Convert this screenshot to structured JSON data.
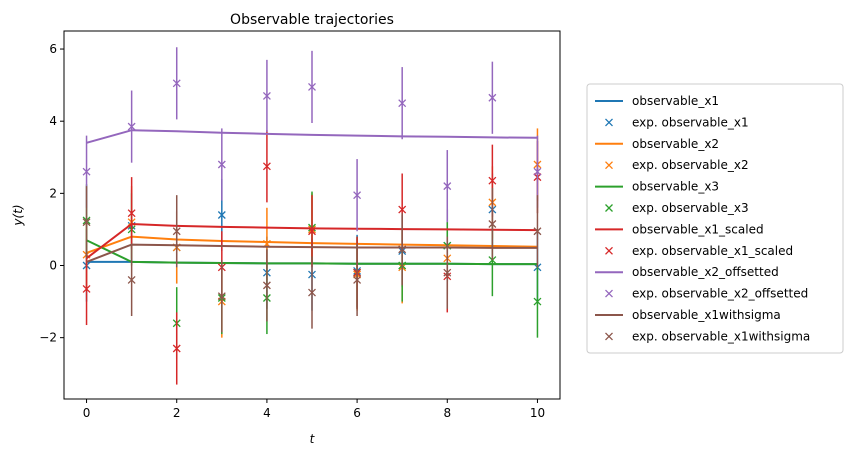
{
  "chart_data": {
    "type": "line",
    "title": "Observable trajectories",
    "xlabel": "t",
    "ylabel": "y(t)",
    "xlim": [
      -0.5,
      10.5
    ],
    "ylim": [
      -3.7,
      6.5
    ],
    "xticks": [
      0,
      2,
      4,
      6,
      8,
      10
    ],
    "xtick_labels": [
      "0",
      "2",
      "4",
      "6",
      "8",
      "10"
    ],
    "yticks": [
      -2,
      0,
      2,
      4,
      6
    ],
    "ytick_labels": [
      "−2",
      "0",
      "2",
      "4",
      "6"
    ],
    "grid": false,
    "legend_position": "right, outside plot",
    "x": [
      0,
      1,
      2,
      3,
      4,
      5,
      6,
      7,
      8,
      9,
      10
    ],
    "series": [
      {
        "name": "observable_x1",
        "exp_name": "exp. observable_x1",
        "color": "#1f77b4",
        "sim": [
          0.1,
          0.1,
          0.08,
          0.07,
          0.06,
          0.06,
          0.05,
          0.05,
          0.05,
          0.04,
          0.04
        ],
        "exp": [
          0.0,
          1.1,
          0.5,
          1.4,
          -0.2,
          -0.25,
          -0.15,
          0.4,
          0.55,
          1.55,
          -0.05
        ],
        "err": [
          1.0,
          1.0,
          1.0,
          1.0,
          1.0,
          1.0,
          1.0,
          1.0,
          1.0,
          1.0,
          1.0
        ]
      },
      {
        "name": "observable_x2",
        "exp_name": "exp. observable_x2",
        "color": "#ff7f0e",
        "sim": [
          0.35,
          0.8,
          0.72,
          0.68,
          0.65,
          0.62,
          0.6,
          0.58,
          0.56,
          0.54,
          0.52
        ],
        "exp": [
          0.3,
          1.2,
          0.5,
          -1.0,
          0.6,
          1.0,
          -0.25,
          -0.05,
          0.2,
          1.75,
          2.8
        ],
        "err": [
          1.0,
          1.0,
          1.0,
          1.0,
          1.0,
          1.0,
          1.0,
          1.0,
          1.0,
          1.0,
          1.0
        ]
      },
      {
        "name": "observable_x3",
        "exp_name": "exp. observable_x3",
        "color": "#2ca02c",
        "sim": [
          0.7,
          0.1,
          0.08,
          0.07,
          0.06,
          0.06,
          0.05,
          0.05,
          0.05,
          0.04,
          0.04
        ],
        "exp": [
          1.25,
          1.0,
          -1.6,
          -0.9,
          -0.9,
          1.05,
          -0.2,
          0.0,
          0.55,
          0.15,
          -1.0
        ],
        "err": [
          1.0,
          1.0,
          1.0,
          1.0,
          1.0,
          1.0,
          1.0,
          1.0,
          1.0,
          1.0,
          1.0
        ]
      },
      {
        "name": "observable_x1_scaled",
        "exp_name": "exp. observable_x1_scaled",
        "color": "#d62728",
        "sim": [
          0.2,
          1.15,
          1.1,
          1.07,
          1.05,
          1.03,
          1.02,
          1.01,
          1.0,
          0.99,
          0.98
        ],
        "exp": [
          -0.65,
          1.45,
          -2.3,
          -0.05,
          2.75,
          0.95,
          -0.2,
          1.55,
          -0.3,
          2.35,
          2.45
        ],
        "err": [
          1.0,
          1.0,
          1.0,
          1.0,
          1.0,
          1.0,
          1.0,
          1.0,
          1.0,
          1.0,
          1.0
        ]
      },
      {
        "name": "observable_x2_offsetted",
        "exp_name": "exp. observable_x2_offsetted",
        "color": "#9467bd",
        "sim": [
          3.4,
          3.75,
          3.72,
          3.68,
          3.65,
          3.62,
          3.6,
          3.58,
          3.57,
          3.55,
          3.54
        ],
        "exp": [
          2.6,
          3.85,
          5.05,
          2.8,
          4.7,
          4.95,
          1.95,
          4.5,
          2.2,
          4.65,
          2.6
        ],
        "err": [
          1.0,
          1.0,
          1.0,
          1.0,
          1.0,
          1.0,
          1.0,
          1.0,
          1.0,
          1.0,
          1.0
        ]
      },
      {
        "name": "observable_x1withsigma",
        "exp_name": "exp. observable_x1withsigma",
        "color": "#8c564b",
        "sim": [
          0.1,
          0.58,
          0.56,
          0.54,
          0.52,
          0.51,
          0.5,
          0.5,
          0.5,
          0.49,
          0.49
        ],
        "exp": [
          1.2,
          -0.4,
          0.95,
          -0.85,
          -0.55,
          -0.75,
          -0.4,
          0.45,
          -0.2,
          1.15,
          0.95
        ],
        "err": [
          1.0,
          1.0,
          1.0,
          1.0,
          1.0,
          1.0,
          1.0,
          1.0,
          1.0,
          1.0,
          1.0
        ]
      }
    ]
  }
}
